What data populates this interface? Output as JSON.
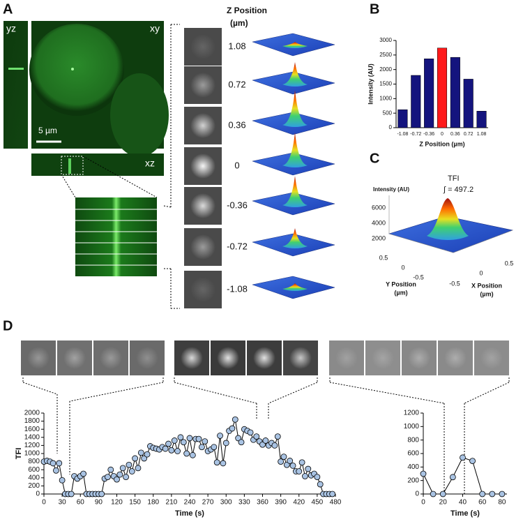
{
  "panel_letters": [
    "A",
    "B",
    "C",
    "D"
  ],
  "panel_a": {
    "views": [
      "yz",
      "xy",
      "xz"
    ],
    "scale_bar": "5 µm",
    "z_header": [
      "Z Position",
      "(µm)"
    ],
    "z_values": [
      1.08,
      0.72,
      0.36,
      0,
      -0.36,
      -0.72,
      -1.08
    ]
  },
  "panel_c": {
    "title": "TFI",
    "integral": "∫ = 497.2",
    "z_label": "Intensity (AU)",
    "z_ticks": [
      "6000",
      "4000",
      "2000"
    ],
    "y_label": [
      "Y Position",
      "(µm)"
    ],
    "y_ticks": [
      "0.5",
      "0",
      "-0.5"
    ],
    "x_label": [
      "X Position",
      "(µm)"
    ],
    "x_ticks": [
      "-0.5",
      "0",
      "0.5"
    ]
  },
  "chart_data": [
    {
      "type": "bar",
      "categories": [
        "-1.08",
        "-0.72",
        "-0.36",
        "0",
        "0.36",
        "0.72",
        "1.08"
      ],
      "values": [
        620,
        1800,
        2370,
        2740,
        2420,
        1670,
        570
      ],
      "colors": [
        "#14147e",
        "#14147e",
        "#14147e",
        "#ff1a1a",
        "#14147e",
        "#14147e",
        "#14147e"
      ],
      "ylim": [
        0,
        3000
      ],
      "yticks": [
        0,
        500,
        1000,
        1500,
        2000,
        2500,
        3000
      ],
      "x_label": "Z Position (µm)",
      "y_label": "Intensity (AU)"
    },
    {
      "type": "line",
      "color": "#a9c3e3",
      "x": [
        0,
        5,
        10,
        15,
        20,
        25,
        30,
        35,
        40,
        45,
        50,
        55,
        60,
        65,
        70,
        75,
        80,
        85,
        90,
        95,
        100,
        105,
        110,
        115,
        120,
        125,
        130,
        135,
        140,
        145,
        150,
        155,
        160,
        165,
        170,
        175,
        180,
        185,
        190,
        195,
        200,
        205,
        210,
        215,
        220,
        225,
        230,
        235,
        240,
        245,
        250,
        255,
        260,
        265,
        270,
        275,
        280,
        285,
        290,
        295,
        300,
        305,
        310,
        315,
        320,
        325,
        330,
        335,
        340,
        345,
        350,
        355,
        360,
        365,
        370,
        375,
        380,
        385,
        390,
        395,
        400,
        405,
        410,
        415,
        420,
        425,
        430,
        435,
        440,
        445,
        450,
        455,
        460,
        465,
        470,
        475
      ],
      "values": [
        800,
        820,
        800,
        760,
        580,
        760,
        340,
        0,
        0,
        0,
        440,
        380,
        440,
        500,
        0,
        0,
        0,
        0,
        0,
        0,
        380,
        420,
        600,
        440,
        360,
        480,
        640,
        420,
        720,
        560,
        880,
        640,
        1020,
        880,
        980,
        1180,
        1140,
        1120,
        1100,
        1160,
        1120,
        1240,
        1080,
        1320,
        1060,
        1400,
        1280,
        1000,
        1380,
        960,
        1360,
        1360,
        1160,
        1300,
        1060,
        1100,
        1160,
        780,
        1440,
        760,
        1260,
        1560,
        1620,
        1840,
        1380,
        1280,
        1600,
        1560,
        1520,
        1340,
        1420,
        1300,
        1220,
        1320,
        1200,
        1260,
        1200,
        1420,
        800,
        920,
        720,
        820,
        700,
        560,
        560,
        780,
        440,
        620,
        460,
        500,
        420,
        240,
        0,
        0,
        0,
        0
      ],
      "xlim": [
        0,
        480
      ],
      "xticks": [
        0,
        30,
        60,
        90,
        120,
        150,
        180,
        210,
        240,
        270,
        300,
        330,
        360,
        390,
        420,
        450,
        480
      ],
      "ylim": [
        0,
        2000
      ],
      "yticks": [
        0,
        200,
        400,
        600,
        800,
        1000,
        1200,
        1400,
        1600,
        1800,
        2000
      ],
      "x_label": "Time (s)",
      "y_label": "TFI"
    },
    {
      "type": "line",
      "color": "#a9c3e3",
      "x": [
        0,
        10,
        20,
        30,
        40,
        50,
        60,
        70,
        80
      ],
      "values": [
        300,
        0,
        0,
        250,
        540,
        490,
        0,
        0,
        0
      ],
      "xlim": [
        0,
        85
      ],
      "xticks": [
        0,
        20,
        40,
        60,
        80
      ],
      "ylim": [
        0,
        1200
      ],
      "yticks": [
        0,
        200,
        400,
        600,
        800,
        1000,
        1200
      ],
      "x_label": "Time (s)"
    }
  ]
}
